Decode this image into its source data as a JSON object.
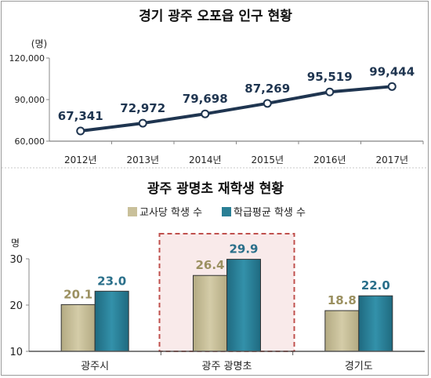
{
  "chart_data": [
    {
      "type": "line",
      "title": "경기 광주 오포읍 인구 현황",
      "ylabel": "(명)",
      "categories": [
        "2012년",
        "2013년",
        "2014년",
        "2015년",
        "2016년",
        "2017년"
      ],
      "values": [
        67341,
        72972,
        79698,
        87269,
        95519,
        99444
      ],
      "value_labels": [
        "67,341",
        "72,972",
        "79,698",
        "87,269",
        "95,519",
        "99,444"
      ],
      "ylim": [
        60000,
        120000
      ],
      "yticks": [
        "60,000",
        "90,000",
        "120,000"
      ],
      "ytick_values": [
        60000,
        90000,
        120000
      ],
      "line_color": "#1f3550",
      "grid": false
    },
    {
      "type": "bar",
      "title": "광주 광명초 재학생 현황",
      "ylabel": "명",
      "categories": [
        "광주시",
        "광주 광명초",
        "경기도"
      ],
      "series": [
        {
          "name": "교사당 학생 수",
          "values": [
            20.1,
            26.4,
            18.8
          ],
          "value_labels": [
            "20.1",
            "26.4",
            "18.8"
          ],
          "color": "#c9c09a",
          "label_color": "#9b9060"
        },
        {
          "name": "학급평균 학생 수",
          "values": [
            23.0,
            29.9,
            22.0
          ],
          "value_labels": [
            "23.0",
            "29.9",
            "22.0"
          ],
          "color": "#2a7f95",
          "label_color": "#2a6f8a"
        }
      ],
      "ylim": [
        10,
        30
      ],
      "yticks": [
        "10",
        "20",
        "30"
      ],
      "ytick_values": [
        10,
        20,
        30
      ],
      "legend_position": "top",
      "highlight_category": "광주 광명초",
      "highlight_color": "#c0504d",
      "grid": false
    }
  ]
}
